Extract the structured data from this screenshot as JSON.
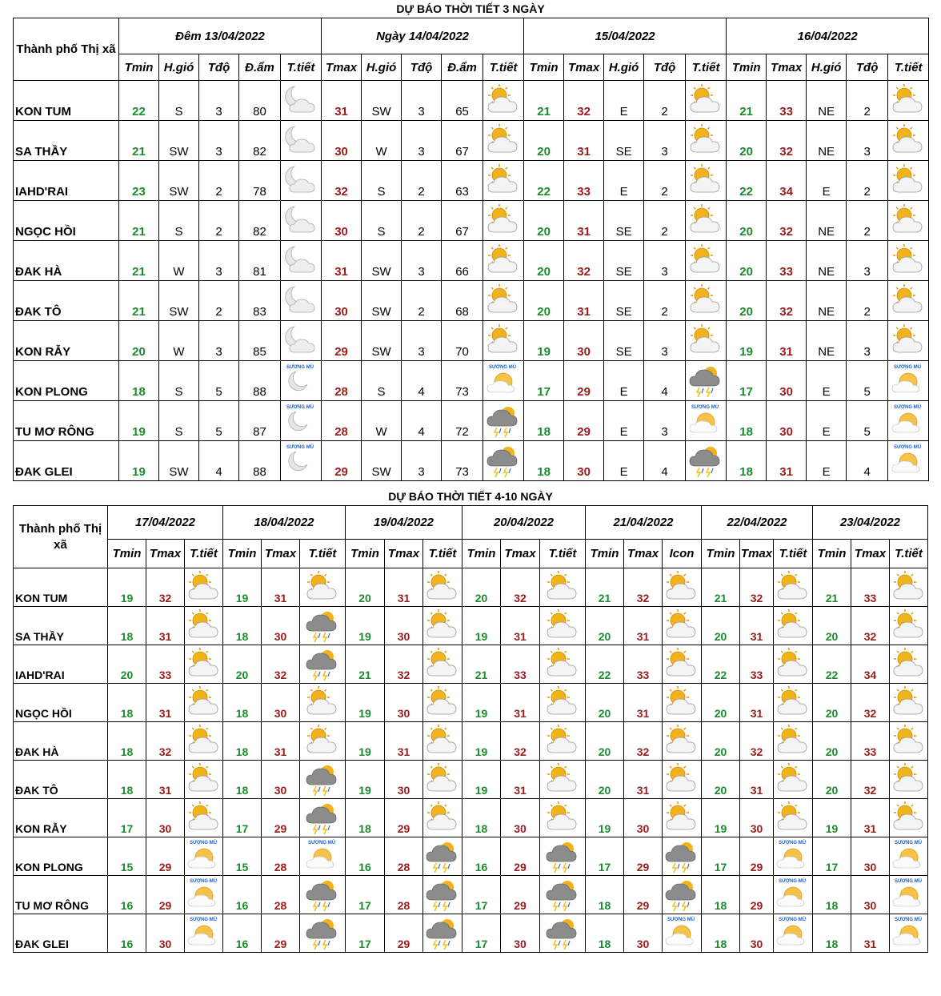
{
  "table1": {
    "title": "DỰ BÁO THỜI TIẾT 3 NGÀY",
    "city_header": "Thành phố Thị xã",
    "groups": [
      {
        "date": "Đêm 13/04/2022",
        "cols": [
          "Tmin",
          "H.gió",
          "Tđộ",
          "Đ.ẩm",
          "T.tiết"
        ]
      },
      {
        "date": "Ngày 14/04/2022",
        "cols": [
          "Tmax",
          "H.gió",
          "Tđộ",
          "Đ.ẩm",
          "T.tiết"
        ]
      },
      {
        "date": "15/04/2022",
        "cols": [
          "Tmin",
          "Tmax",
          "H.gió",
          "Tđộ",
          "T.tiết"
        ]
      },
      {
        "date": "16/04/2022",
        "cols": [
          "Tmin",
          "Tmax",
          "H.gió",
          "Tđộ",
          "T.tiết"
        ]
      }
    ],
    "icon_legend": {
      "sunny-cloud": "partly-sunny-icon",
      "night-cloud": "night-cloudy-icon",
      "fog": "fog-icon",
      "fog_label": "SƯƠNG MÙ",
      "storm": "thunderstorm-icon"
    },
    "rows": [
      {
        "city": "KON TUM",
        "d1": [
          "22",
          "S",
          "3",
          "80",
          "night"
        ],
        "d2": [
          "31",
          "SW",
          "3",
          "65",
          "sun"
        ],
        "d3": [
          "21",
          "32",
          "E",
          "2",
          "sun"
        ],
        "d4": [
          "21",
          "33",
          "NE",
          "2",
          "sun"
        ]
      },
      {
        "city": "SA THẦY",
        "d1": [
          "21",
          "SW",
          "3",
          "82",
          "night"
        ],
        "d2": [
          "30",
          "W",
          "3",
          "67",
          "sun"
        ],
        "d3": [
          "20",
          "31",
          "SE",
          "3",
          "sun"
        ],
        "d4": [
          "20",
          "32",
          "NE",
          "3",
          "sun"
        ]
      },
      {
        "city": "IAHD'RAI",
        "d1": [
          "23",
          "SW",
          "2",
          "78",
          "night"
        ],
        "d2": [
          "32",
          "S",
          "2",
          "63",
          "sun"
        ],
        "d3": [
          "22",
          "33",
          "E",
          "2",
          "sun"
        ],
        "d4": [
          "22",
          "34",
          "E",
          "2",
          "sun"
        ]
      },
      {
        "city": "NGỌC HỒI",
        "d1": [
          "21",
          "S",
          "2",
          "82",
          "night"
        ],
        "d2": [
          "30",
          "S",
          "2",
          "67",
          "sun"
        ],
        "d3": [
          "20",
          "31",
          "SE",
          "2",
          "sun"
        ],
        "d4": [
          "20",
          "32",
          "NE",
          "2",
          "sun"
        ]
      },
      {
        "city": "ĐAK HÀ",
        "d1": [
          "21",
          "W",
          "3",
          "81",
          "night"
        ],
        "d2": [
          "31",
          "SW",
          "3",
          "66",
          "sun"
        ],
        "d3": [
          "20",
          "32",
          "SE",
          "3",
          "sun"
        ],
        "d4": [
          "20",
          "33",
          "NE",
          "3",
          "sun"
        ]
      },
      {
        "city": "ĐAK TÔ",
        "d1": [
          "21",
          "SW",
          "2",
          "83",
          "night"
        ],
        "d2": [
          "30",
          "SW",
          "2",
          "68",
          "sun"
        ],
        "d3": [
          "20",
          "31",
          "SE",
          "2",
          "sun"
        ],
        "d4": [
          "20",
          "32",
          "NE",
          "2",
          "sun"
        ]
      },
      {
        "city": "KON RẪY",
        "d1": [
          "20",
          "W",
          "3",
          "85",
          "night"
        ],
        "d2": [
          "29",
          "SW",
          "3",
          "70",
          "sun"
        ],
        "d3": [
          "19",
          "30",
          "SE",
          "3",
          "sun"
        ],
        "d4": [
          "19",
          "31",
          "NE",
          "3",
          "sun"
        ]
      },
      {
        "city": "KON PLONG",
        "d1": [
          "18",
          "S",
          "5",
          "88",
          "fognight"
        ],
        "d2": [
          "28",
          "S",
          "4",
          "73",
          "fog"
        ],
        "d3": [
          "17",
          "29",
          "E",
          "4",
          "storm"
        ],
        "d4": [
          "17",
          "30",
          "E",
          "5",
          "fog"
        ]
      },
      {
        "city": "TU MƠ RÔNG",
        "d1": [
          "19",
          "S",
          "5",
          "87",
          "fognight"
        ],
        "d2": [
          "28",
          "W",
          "4",
          "72",
          "storm"
        ],
        "d3": [
          "18",
          "29",
          "E",
          "3",
          "fog"
        ],
        "d4": [
          "18",
          "30",
          "E",
          "5",
          "fog"
        ]
      },
      {
        "city": "ĐAK GLEI",
        "d1": [
          "19",
          "SW",
          "4",
          "88",
          "fognight"
        ],
        "d2": [
          "29",
          "SW",
          "3",
          "73",
          "storm"
        ],
        "d3": [
          "18",
          "30",
          "E",
          "4",
          "storm"
        ],
        "d4": [
          "18",
          "31",
          "E",
          "4",
          "fog"
        ]
      }
    ]
  },
  "table2": {
    "title": "DỰ BÁO THỜI TIẾT 4-10 NGÀY",
    "city_header": "Thành phố Thị xã",
    "dates": [
      "17/04/2022",
      "18/04/2022",
      "19/04/2022",
      "20/04/2022",
      "21/04/2022",
      "22/04/2022",
      "23/04/2022"
    ],
    "cols": [
      [
        "Tmin",
        "Tmax",
        "T.tiết"
      ],
      [
        "Tmin",
        "Tmax",
        "T.tiết"
      ],
      [
        "Tmin",
        "Tmax",
        "T.tiết"
      ],
      [
        "Tmin",
        "Tmax",
        "T.tiết"
      ],
      [
        "Tmin",
        "Tmax",
        "Icon"
      ],
      [
        "Tmin",
        "Tmax",
        "T.tiết"
      ],
      [
        "Tmin",
        "Tmax",
        "T.tiết"
      ]
    ],
    "rows": [
      {
        "city": "KON TUM",
        "days": [
          [
            "19",
            "32",
            "sun"
          ],
          [
            "19",
            "31",
            "sun"
          ],
          [
            "20",
            "31",
            "sun"
          ],
          [
            "20",
            "32",
            "sun"
          ],
          [
            "21",
            "32",
            "sun"
          ],
          [
            "21",
            "32",
            "sun"
          ],
          [
            "21",
            "33",
            "sun"
          ]
        ]
      },
      {
        "city": "SA THẦY",
        "days": [
          [
            "18",
            "31",
            "sun"
          ],
          [
            "18",
            "30",
            "storm"
          ],
          [
            "19",
            "30",
            "sun"
          ],
          [
            "19",
            "31",
            "sun"
          ],
          [
            "20",
            "31",
            "sun"
          ],
          [
            "20",
            "31",
            "sun"
          ],
          [
            "20",
            "32",
            "sun"
          ]
        ]
      },
      {
        "city": "IAHD'RAI",
        "days": [
          [
            "20",
            "33",
            "sun"
          ],
          [
            "20",
            "32",
            "storm"
          ],
          [
            "21",
            "32",
            "sun"
          ],
          [
            "21",
            "33",
            "sun"
          ],
          [
            "22",
            "33",
            "sun"
          ],
          [
            "22",
            "33",
            "sun"
          ],
          [
            "22",
            "34",
            "sun"
          ]
        ]
      },
      {
        "city": "NGỌC HỒI",
        "days": [
          [
            "18",
            "31",
            "sun"
          ],
          [
            "18",
            "30",
            "sun"
          ],
          [
            "19",
            "30",
            "sun"
          ],
          [
            "19",
            "31",
            "sun"
          ],
          [
            "20",
            "31",
            "sun"
          ],
          [
            "20",
            "31",
            "sun"
          ],
          [
            "20",
            "32",
            "sun"
          ]
        ]
      },
      {
        "city": "ĐAK HÀ",
        "days": [
          [
            "18",
            "32",
            "sun"
          ],
          [
            "18",
            "31",
            "sun"
          ],
          [
            "19",
            "31",
            "sun"
          ],
          [
            "19",
            "32",
            "sun"
          ],
          [
            "20",
            "32",
            "sun"
          ],
          [
            "20",
            "32",
            "sun"
          ],
          [
            "20",
            "33",
            "sun"
          ]
        ]
      },
      {
        "city": "ĐAK TÔ",
        "days": [
          [
            "18",
            "31",
            "sun"
          ],
          [
            "18",
            "30",
            "storm"
          ],
          [
            "19",
            "30",
            "sun"
          ],
          [
            "19",
            "31",
            "sun"
          ],
          [
            "20",
            "31",
            "sun"
          ],
          [
            "20",
            "31",
            "sun"
          ],
          [
            "20",
            "32",
            "sun"
          ]
        ]
      },
      {
        "city": "KON RẪY",
        "days": [
          [
            "17",
            "30",
            "sun"
          ],
          [
            "17",
            "29",
            "storm"
          ],
          [
            "18",
            "29",
            "sun"
          ],
          [
            "18",
            "30",
            "sun"
          ],
          [
            "19",
            "30",
            "sun"
          ],
          [
            "19",
            "30",
            "sun"
          ],
          [
            "19",
            "31",
            "sun"
          ]
        ]
      },
      {
        "city": "KON PLONG",
        "days": [
          [
            "15",
            "29",
            "fog"
          ],
          [
            "15",
            "28",
            "fog"
          ],
          [
            "16",
            "28",
            "storm"
          ],
          [
            "16",
            "29",
            "storm"
          ],
          [
            "17",
            "29",
            "storm"
          ],
          [
            "17",
            "29",
            "fog"
          ],
          [
            "17",
            "30",
            "fog"
          ]
        ]
      },
      {
        "city": "TU MƠ RÔNG",
        "days": [
          [
            "16",
            "29",
            "fog"
          ],
          [
            "16",
            "28",
            "storm"
          ],
          [
            "17",
            "28",
            "storm"
          ],
          [
            "17",
            "29",
            "storm"
          ],
          [
            "18",
            "29",
            "storm"
          ],
          [
            "18",
            "29",
            "fog"
          ],
          [
            "18",
            "30",
            "fog"
          ]
        ]
      },
      {
        "city": "ĐAK GLEI",
        "days": [
          [
            "16",
            "30",
            "fog"
          ],
          [
            "16",
            "29",
            "storm"
          ],
          [
            "17",
            "29",
            "storm"
          ],
          [
            "17",
            "30",
            "storm"
          ],
          [
            "18",
            "30",
            "fog"
          ],
          [
            "18",
            "30",
            "fog"
          ],
          [
            "18",
            "31",
            "fog"
          ]
        ]
      }
    ]
  }
}
